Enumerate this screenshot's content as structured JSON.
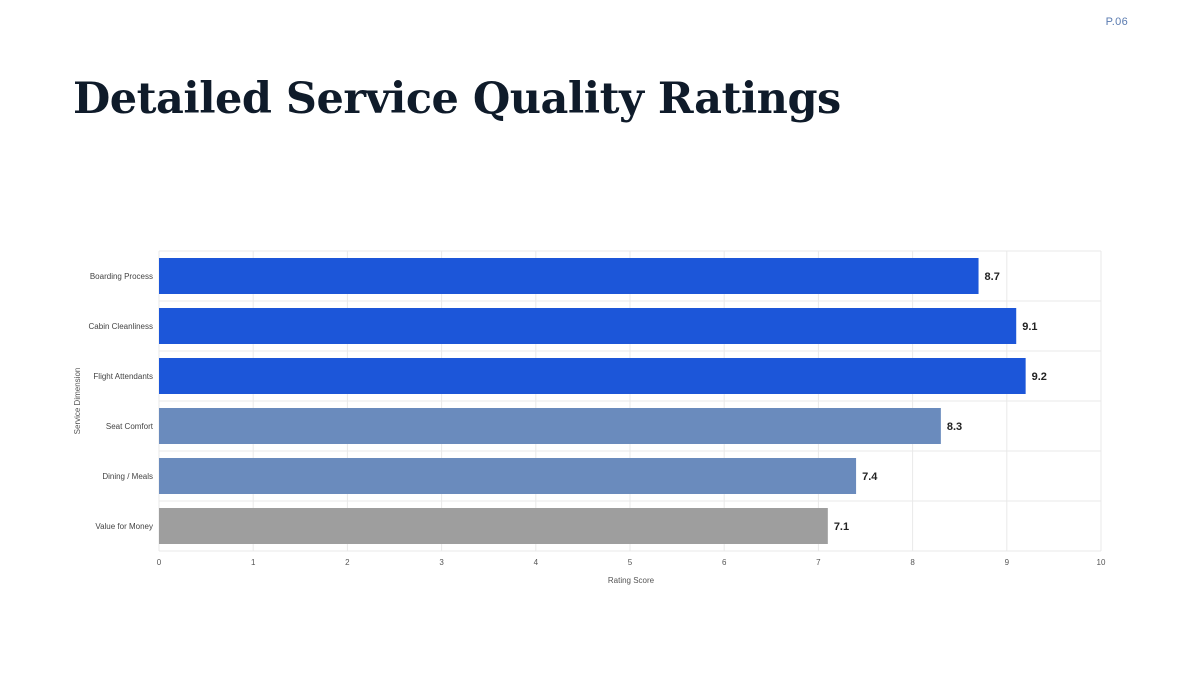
{
  "page": {
    "number": "P.06",
    "title": "Detailed Service Quality Ratings"
  },
  "colors": {
    "strong": "#1c56d9",
    "medium": "#6a8bbd",
    "neutral": "#9e9e9e",
    "grid": "#e9e9e9",
    "title": "#0f1b2a",
    "page_number": "#5a7bb0"
  },
  "chart_data": {
    "type": "bar",
    "orientation": "horizontal",
    "xlabel": "Rating Score",
    "ylabel": "Service Dimension",
    "xlim": [
      0,
      10
    ],
    "x_ticks": [
      0,
      1,
      2,
      3,
      4,
      5,
      6,
      7,
      8,
      9,
      10
    ],
    "grid": true,
    "categories": [
      "Boarding Process",
      "Cabin Cleanliness",
      "Flight Attendants",
      "Seat Comfort",
      "Dining / Meals",
      "Value for Money"
    ],
    "values": [
      8.7,
      9.1,
      9.2,
      8.3,
      7.4,
      7.1
    ],
    "value_labels": [
      "8.7",
      "9.1",
      "9.2",
      "8.3",
      "7.4",
      "7.1"
    ],
    "bar_colors": [
      "#1c56d9",
      "#1c56d9",
      "#1c56d9",
      "#6a8bbd",
      "#6a8bbd",
      "#9e9e9e"
    ]
  }
}
